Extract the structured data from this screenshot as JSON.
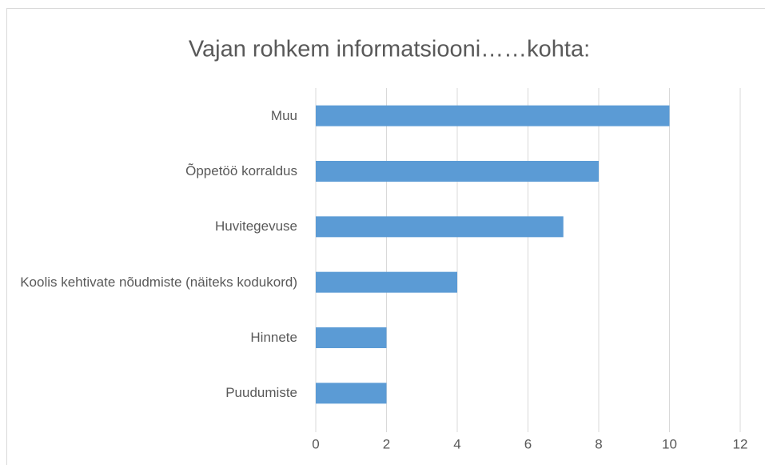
{
  "chart_data": {
    "type": "bar",
    "orientation": "horizontal",
    "title": "Vajan rohkem informatsiooni……kohta:",
    "categories": [
      "Muu",
      "Õppetöö korraldus",
      "Huvitegevuse",
      "Koolis kehtivate nõudmiste (näiteks kodukord)",
      "Hinnete",
      "Puudumiste"
    ],
    "values": [
      10,
      8,
      7,
      4,
      2,
      2
    ],
    "color": "#5b9bd5",
    "xlim": [
      0,
      12
    ],
    "xticks": [
      0,
      2,
      4,
      6,
      8,
      10,
      12
    ],
    "grid": true
  }
}
